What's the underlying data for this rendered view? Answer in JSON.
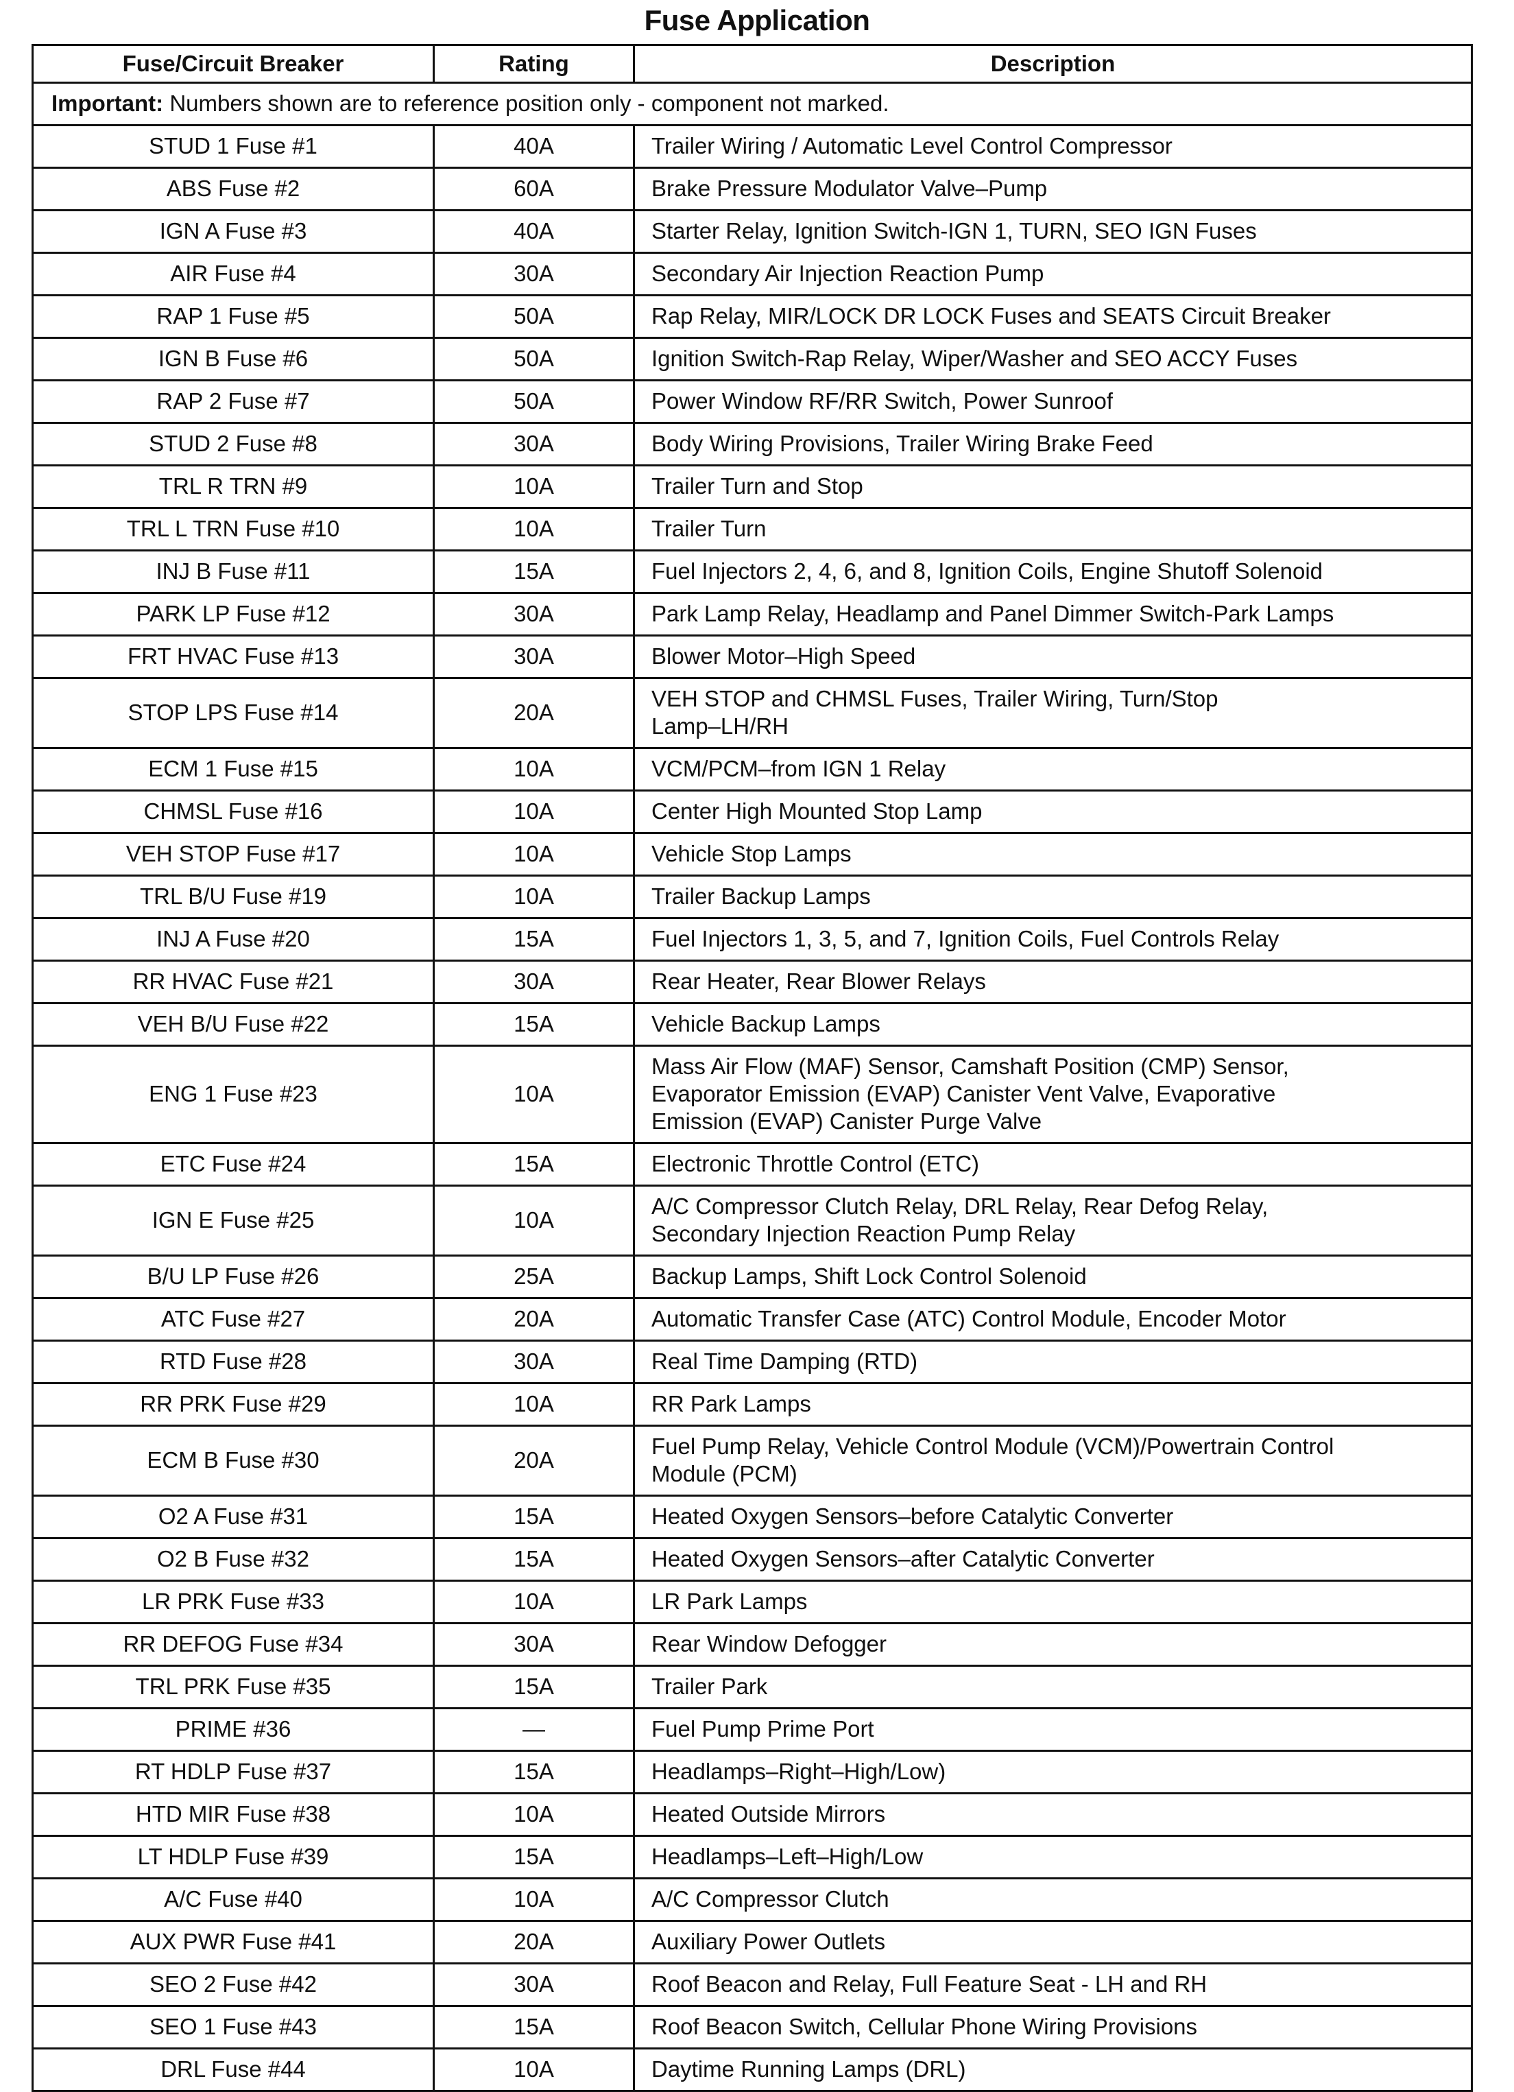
{
  "title": "Fuse Application",
  "headers": {
    "fuse": "Fuse/Circuit Breaker",
    "rating": "Rating",
    "description": "Description"
  },
  "note": {
    "label": "Important:",
    "text": " Numbers shown are to reference position only - component not marked."
  },
  "rows": [
    {
      "fuse": "STUD 1 Fuse #1",
      "rating": "40A",
      "description": "Trailer Wiring / Automatic Level Control Compressor"
    },
    {
      "fuse": "ABS Fuse #2",
      "rating": "60A",
      "description": "Brake Pressure Modulator Valve–Pump"
    },
    {
      "fuse": "IGN A Fuse #3",
      "rating": "40A",
      "description": "Starter Relay, Ignition Switch-IGN 1, TURN, SEO IGN Fuses"
    },
    {
      "fuse": "AIR Fuse #4",
      "rating": "30A",
      "description": "Secondary Air Injection Reaction Pump"
    },
    {
      "fuse": "RAP 1 Fuse #5",
      "rating": "50A",
      "description": "Rap Relay, MIR/LOCK DR LOCK Fuses and SEATS Circuit Breaker"
    },
    {
      "fuse": "IGN B Fuse #6",
      "rating": "50A",
      "description": "Ignition Switch-Rap Relay, Wiper/Washer and SEO ACCY Fuses"
    },
    {
      "fuse": "RAP 2 Fuse #7",
      "rating": "50A",
      "description": "Power Window RF/RR Switch, Power Sunroof"
    },
    {
      "fuse": "STUD 2 Fuse #8",
      "rating": "30A",
      "description": "Body Wiring Provisions, Trailer Wiring Brake Feed"
    },
    {
      "fuse": "TRL R TRN #9",
      "rating": "10A",
      "description": "Trailer Turn and Stop"
    },
    {
      "fuse": "TRL L TRN Fuse #10",
      "rating": "10A",
      "description": "Trailer Turn"
    },
    {
      "fuse": "INJ B Fuse #11",
      "rating": "15A",
      "description": "Fuel Injectors 2, 4, 6, and 8, Ignition Coils, Engine Shutoff Solenoid"
    },
    {
      "fuse": "PARK LP Fuse #12",
      "rating": "30A",
      "description": "Park Lamp Relay, Headlamp and Panel Dimmer Switch-Park Lamps"
    },
    {
      "fuse": "FRT HVAC Fuse #13",
      "rating": "30A",
      "description": "Blower Motor–High Speed"
    },
    {
      "fuse": "STOP LPS Fuse #14",
      "rating": "20A",
      "description": "VEH STOP and CHMSL Fuses, Trailer Wiring, Turn/Stop\nLamp–LH/RH"
    },
    {
      "fuse": "ECM 1 Fuse #15",
      "rating": "10A",
      "description": "VCM/PCM–from IGN 1 Relay"
    },
    {
      "fuse": "CHMSL Fuse #16",
      "rating": "10A",
      "description": "Center High Mounted Stop Lamp"
    },
    {
      "fuse": "VEH STOP Fuse #17",
      "rating": "10A",
      "description": "Vehicle Stop Lamps"
    },
    {
      "fuse": "TRL B/U Fuse #19",
      "rating": "10A",
      "description": "Trailer Backup Lamps"
    },
    {
      "fuse": "INJ A Fuse #20",
      "rating": "15A",
      "description": "Fuel Injectors 1, 3, 5, and 7, Ignition Coils, Fuel Controls Relay"
    },
    {
      "fuse": "RR HVAC Fuse #21",
      "rating": "30A",
      "description": "Rear Heater, Rear Blower Relays"
    },
    {
      "fuse": "VEH B/U Fuse #22",
      "rating": "15A",
      "description": "Vehicle Backup Lamps"
    },
    {
      "fuse": "ENG 1 Fuse #23",
      "rating": "10A",
      "description": "Mass Air Flow (MAF) Sensor, Camshaft Position (CMP) Sensor,\nEvaporator Emission (EVAP) Canister Vent Valve, Evaporative\nEmission (EVAP) Canister Purge Valve"
    },
    {
      "fuse": "ETC Fuse #24",
      "rating": "15A",
      "description": "Electronic Throttle Control (ETC)"
    },
    {
      "fuse": "IGN E Fuse #25",
      "rating": "10A",
      "description": "A/C Compressor Clutch Relay, DRL Relay, Rear Defog Relay,\nSecondary Injection Reaction Pump Relay"
    },
    {
      "fuse": "B/U LP Fuse #26",
      "rating": "25A",
      "description": "Backup Lamps, Shift Lock Control Solenoid"
    },
    {
      "fuse": "ATC Fuse #27",
      "rating": "20A",
      "description": "Automatic Transfer Case (ATC) Control Module, Encoder Motor"
    },
    {
      "fuse": "RTD Fuse #28",
      "rating": "30A",
      "description": "Real Time Damping (RTD)"
    },
    {
      "fuse": "RR PRK Fuse #29",
      "rating": "10A",
      "description": "RR Park Lamps"
    },
    {
      "fuse": "ECM B Fuse #30",
      "rating": "20A",
      "description": "Fuel Pump Relay, Vehicle Control Module (VCM)/Powertrain Control\nModule (PCM)"
    },
    {
      "fuse": "O2 A Fuse #31",
      "rating": "15A",
      "description": "Heated Oxygen Sensors–before Catalytic Converter"
    },
    {
      "fuse": "O2 B Fuse #32",
      "rating": "15A",
      "description": "Heated Oxygen Sensors–after Catalytic Converter"
    },
    {
      "fuse": "LR PRK Fuse #33",
      "rating": "10A",
      "description": "LR Park Lamps"
    },
    {
      "fuse": "RR DEFOG Fuse #34",
      "rating": "30A",
      "description": "Rear Window Defogger"
    },
    {
      "fuse": "TRL PRK Fuse #35",
      "rating": "15A",
      "description": "Trailer Park"
    },
    {
      "fuse": "PRIME #36",
      "rating": "—",
      "description": "Fuel Pump Prime Port"
    },
    {
      "fuse": "RT HDLP Fuse #37",
      "rating": "15A",
      "description": "Headlamps–Right–High/Low)"
    },
    {
      "fuse": "HTD MIR Fuse #38",
      "rating": "10A",
      "description": "Heated Outside Mirrors"
    },
    {
      "fuse": "LT HDLP Fuse #39",
      "rating": "15A",
      "description": "Headlamps–Left–High/Low"
    },
    {
      "fuse": "A/C Fuse #40",
      "rating": "10A",
      "description": "A/C Compressor Clutch"
    },
    {
      "fuse": "AUX PWR Fuse #41",
      "rating": "20A",
      "description": "Auxiliary Power Outlets"
    },
    {
      "fuse": "SEO 2 Fuse #42",
      "rating": "30A",
      "description": "Roof Beacon and Relay, Full Feature Seat - LH and RH"
    },
    {
      "fuse": "SEO 1 Fuse #43",
      "rating": "15A",
      "description": "Roof Beacon Switch, Cellular Phone Wiring Provisions"
    },
    {
      "fuse": "DRL Fuse #44",
      "rating": "10A",
      "description": "Daytime Running Lamps (DRL)"
    }
  ]
}
